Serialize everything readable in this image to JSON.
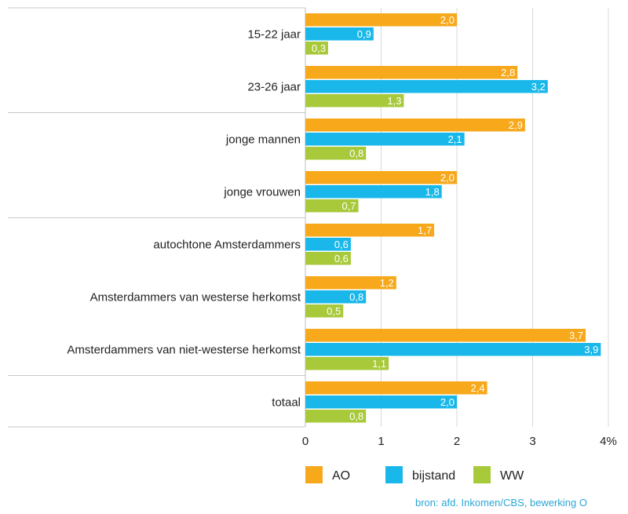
{
  "chart_data": {
    "type": "bar",
    "orientation": "horizontal",
    "categories": [
      "15-22 jaar",
      "23-26 jaar",
      "jonge mannen",
      "jonge vrouwen",
      "autochtone Amsterdammers",
      "Amsterdammers van westerse herkomst",
      "Amsterdammers van niet-westerse herkomst",
      "totaal"
    ],
    "series": [
      {
        "name": "AO",
        "color": "#f7a81b",
        "values": [
          2.0,
          2.8,
          2.9,
          2.0,
          1.7,
          1.2,
          3.7,
          2.4
        ],
        "labels": [
          "2,0",
          "2,8",
          "2,9",
          "2,0",
          "1,7",
          "1,2",
          "3,7",
          "2,4"
        ]
      },
      {
        "name": "bijstand",
        "color": "#1ab8ea",
        "values": [
          0.9,
          3.2,
          2.1,
          1.8,
          0.6,
          0.8,
          3.9,
          2.0
        ],
        "labels": [
          "0,9",
          "3,2",
          "2,1",
          "1,8",
          "0,6",
          "0,8",
          "3,9",
          "2,0"
        ]
      },
      {
        "name": "WW",
        "color": "#a8c93a",
        "values": [
          0.3,
          1.3,
          0.8,
          0.7,
          0.6,
          0.5,
          1.1,
          0.8
        ],
        "labels": [
          "0,3",
          "1,3",
          "0,8",
          "0,7",
          "0,6",
          "0,5",
          "1,1",
          "0,8"
        ]
      }
    ],
    "xlim": [
      0,
      4
    ],
    "xticks": [
      0,
      1,
      2,
      3,
      4
    ],
    "xtick_labels": [
      "0",
      "1",
      "2",
      "3",
      "4%"
    ],
    "grid": true,
    "legend": "bottom",
    "group_separators_after": [
      1,
      3,
      6
    ]
  },
  "source": "bron: afd. Inkomen/CBS, bewerking O"
}
